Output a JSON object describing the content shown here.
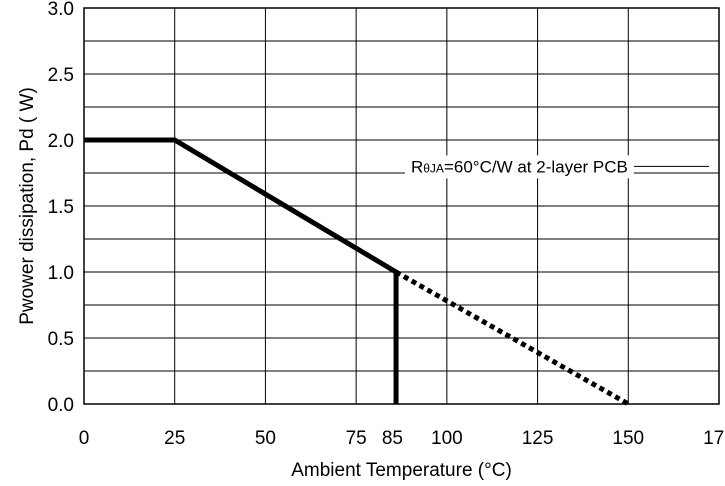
{
  "chart_data": {
    "type": "line",
    "title": "",
    "xlabel": "Ambient Temperature (°C)",
    "ylabel": "Pwower dissipation, Pd ( W)",
    "xlim": [
      0,
      175
    ],
    "ylim": [
      0,
      3.0
    ],
    "grid": true,
    "x_ticks": [
      {
        "value": 0,
        "label": "0"
      },
      {
        "value": 25,
        "label": "25"
      },
      {
        "value": 50,
        "label": "50"
      },
      {
        "value": 75,
        "label": "75"
      },
      {
        "value": 85,
        "label": "85"
      },
      {
        "value": 100,
        "label": "100"
      },
      {
        "value": 125,
        "label": "125"
      },
      {
        "value": 150,
        "label": "150"
      },
      {
        "value": 175,
        "label": "175"
      }
    ],
    "y_ticks": [
      {
        "value": 0,
        "label": "0.0"
      },
      {
        "value": 0.5,
        "label": "0.5"
      },
      {
        "value": 1.0,
        "label": "1.0"
      },
      {
        "value": 1.5,
        "label": "1.5"
      },
      {
        "value": 2.0,
        "label": "2.0"
      },
      {
        "value": 2.5,
        "label": "2.5"
      },
      {
        "value": 3.0,
        "label": "3.0"
      }
    ],
    "x_grid": [
      0,
      25,
      50,
      75,
      100,
      125,
      150,
      175
    ],
    "y_grid": [
      0,
      0.25,
      0.5,
      0.75,
      1.0,
      1.25,
      1.5,
      1.75,
      2.0,
      2.25,
      2.5,
      2.75,
      3.0
    ],
    "series": [
      {
        "style": "solid",
        "color": "#000000",
        "points": [
          [
            0,
            2.0
          ],
          [
            25,
            2.0
          ],
          [
            86,
            1.0
          ],
          [
            86,
            0.0
          ]
        ]
      },
      {
        "style": "dotted",
        "color": "#000000",
        "points": [
          [
            86,
            1.0
          ],
          [
            150,
            0.0
          ]
        ]
      }
    ],
    "annotation": {
      "prefix": "R",
      "symbol": "θ",
      "subscript": "JA",
      "suffix": "=60°C/W at 2-layer PCB",
      "x": 120,
      "y": 1.8
    }
  }
}
